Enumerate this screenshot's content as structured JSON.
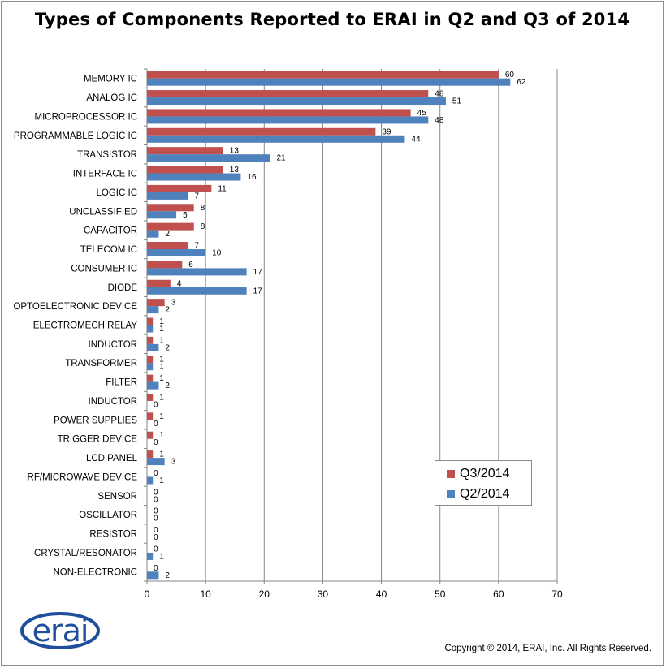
{
  "page": {
    "title": "Types of Components Reported to ERAI in Q2 and Q3 of 2014",
    "copyright": "Copyright © 2014, ERAI, Inc.  All Rights Reserved.",
    "logo_text": "erai",
    "logo_icon": "erai-logo-icon"
  },
  "colors": {
    "q3": "#c0504d",
    "q2": "#4f81bd",
    "grid": "#868686",
    "axis": "#868686"
  },
  "chart_data": {
    "type": "bar",
    "orientation": "horizontal",
    "title": "Types of Components Reported to ERAI in Q2 and Q3 of 2014",
    "xlabel": "",
    "ylabel": "",
    "xlim": [
      0,
      70
    ],
    "xticks": [
      0,
      10,
      20,
      30,
      40,
      50,
      60,
      70
    ],
    "grid": true,
    "legend_position": "bottom-right",
    "categories": [
      "MEMORY IC",
      "ANALOG IC",
      "MICROPROCESSOR IC",
      "PROGRAMMABLE LOGIC IC",
      "TRANSISTOR",
      "INTERFACE IC",
      "LOGIC IC",
      "UNCLASSIFIED",
      "CAPACITOR",
      "TELECOM IC",
      "CONSUMER IC",
      "DIODE",
      "OPTOELECTRONIC DEVICE",
      "ELECTROMECH RELAY",
      "INDUCTOR",
      "TRANSFORMER",
      "FILTER",
      "INDUCTOR",
      "POWER SUPPLIES",
      "TRIGGER DEVICE",
      "LCD PANEL",
      "RF/MICROWAVE DEVICE",
      "SENSOR",
      "OSCILLATOR",
      "RESISTOR",
      "CRYSTAL/RESONATOR",
      "NON-ELECTRONIC"
    ],
    "series": [
      {
        "name": "Q3/2014",
        "values": [
          60,
          48,
          45,
          39,
          13,
          13,
          11,
          8,
          8,
          7,
          6,
          4,
          3,
          1,
          1,
          1,
          1,
          1,
          1,
          1,
          1,
          0,
          0,
          0,
          0,
          0,
          0
        ]
      },
      {
        "name": "Q2/2014",
        "values": [
          62,
          51,
          48,
          44,
          21,
          16,
          7,
          5,
          2,
          10,
          17,
          17,
          2,
          1,
          2,
          1,
          2,
          0,
          0,
          0,
          3,
          1,
          0,
          0,
          0,
          1,
          2
        ]
      }
    ]
  }
}
